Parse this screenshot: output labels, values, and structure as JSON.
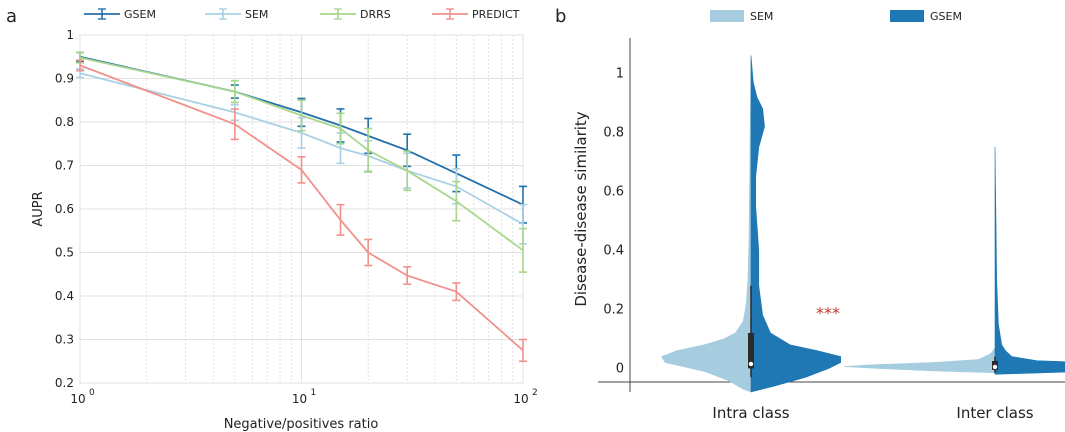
{
  "panels": {
    "a": {
      "label": "a"
    },
    "b": {
      "label": "b"
    }
  },
  "chart_data": [
    {
      "type": "line",
      "panel": "a",
      "title": "",
      "xlabel": "Negative/positives ratio",
      "ylabel": "AUPR",
      "xscale": "log",
      "xlim": [
        1,
        100
      ],
      "ylim": [
        0.2,
        1.0
      ],
      "xticks": [
        1,
        10,
        100
      ],
      "xtick_labels": [
        {
          "base": "10",
          "exp": "0"
        },
        {
          "base": "10",
          "exp": "1"
        },
        {
          "base": "10",
          "exp": "2"
        }
      ],
      "yticks": [
        0.2,
        0.3,
        0.4,
        0.5,
        0.6,
        0.7,
        0.8,
        0.9,
        1
      ],
      "ytick_labels": [
        "0.2",
        "0.3",
        "0.4",
        "0.5",
        "0.6",
        "0.7",
        "0.8",
        "0.9",
        "1"
      ],
      "grid": true,
      "legend_position": "top",
      "x": [
        1,
        5,
        10,
        15,
        20,
        30,
        50,
        100
      ],
      "series": [
        {
          "name": "GSEM",
          "color": "#2470ab",
          "values": [
            0.95,
            0.87,
            0.822,
            0.792,
            0.768,
            0.735,
            0.682,
            0.61
          ],
          "err": [
            0.01,
            0.015,
            0.032,
            0.038,
            0.04,
            0.037,
            0.042,
            0.042
          ],
          "err_x": [
            1,
            5,
            10,
            15,
            20,
            30,
            50,
            100
          ]
        },
        {
          "name": "SEM",
          "color": "#a9d0e4",
          "values": [
            0.912,
            0.822,
            0.775,
            0.74,
            0.722,
            0.688,
            0.652,
            0.565
          ],
          "err": [
            0.01,
            0.018,
            0.035,
            0.035,
            0.035,
            0.04,
            0.04,
            0.045
          ],
          "err_x": [
            1,
            5,
            10,
            15,
            20,
            30,
            50,
            100
          ]
        },
        {
          "name": "DRRS",
          "color": "#a7d68c",
          "values": [
            0.948,
            0.87,
            0.815,
            0.785,
            0.735,
            0.688,
            0.618,
            0.505
          ],
          "err": [
            0.012,
            0.025,
            0.035,
            0.035,
            0.05,
            0.045,
            0.045,
            0.05
          ],
          "err_x": [
            1,
            5,
            10,
            15,
            20,
            30,
            50,
            100
          ]
        },
        {
          "name": "PREDICT",
          "color": "#f0918c",
          "values": [
            0.93,
            0.795,
            0.69,
            0.575,
            0.5,
            0.447,
            0.41,
            0.275
          ],
          "err": [
            0.012,
            0.035,
            0.03,
            0.035,
            0.03,
            0.02,
            0.02,
            0.025
          ],
          "err_x": [
            1,
            5,
            10,
            15,
            20,
            30,
            50,
            100
          ]
        }
      ]
    },
    {
      "type": "violin",
      "panel": "b",
      "title": "",
      "xlabel": "",
      "ylabel": "Disease-disease similarity",
      "ylim": [
        -0.08,
        1.12
      ],
      "yticks": [
        0,
        0.2,
        0.4,
        0.6,
        0.8,
        1
      ],
      "ytick_labels": [
        "0",
        "0.2",
        "0.4",
        "0.6",
        "0.8",
        "1"
      ],
      "categories": [
        "Intra class",
        "Inter class"
      ],
      "legend_position": "top",
      "series": [
        {
          "name": "SEM",
          "color": "#a6cce0",
          "side": "left"
        },
        {
          "name": "GSEM",
          "color": "#1f78b4",
          "side": "right"
        }
      ],
      "annotation": {
        "text": "***",
        "color": "#c0392b",
        "category": "Intra class",
        "y": 0.17
      },
      "distributions": {
        "Intra class": {
          "SEM": [
            [
              -0.08,
              0
            ],
            [
              -0.07,
              0.02
            ],
            [
              -0.04,
              0.06
            ],
            [
              -0.01,
              0.12
            ],
            [
              0.005,
              0.17
            ],
            [
              0.02,
              0.22
            ],
            [
              0.04,
              0.23
            ],
            [
              0.06,
              0.19
            ],
            [
              0.08,
              0.12
            ],
            [
              0.1,
              0.07
            ],
            [
              0.12,
              0.04
            ],
            [
              0.16,
              0.02
            ],
            [
              0.22,
              0.012
            ],
            [
              0.3,
              0.008
            ],
            [
              0.45,
              0.005
            ],
            [
              0.7,
              0.003
            ],
            [
              1.05,
              0
            ]
          ],
          "GSEM": [
            [
              -0.08,
              0
            ],
            [
              -0.06,
              0.06
            ],
            [
              -0.03,
              0.14
            ],
            [
              0.0,
              0.2
            ],
            [
              0.02,
              0.23
            ],
            [
              0.04,
              0.23
            ],
            [
              0.06,
              0.17
            ],
            [
              0.08,
              0.1
            ],
            [
              0.12,
              0.05
            ],
            [
              0.18,
              0.03
            ],
            [
              0.28,
              0.02
            ],
            [
              0.4,
              0.02
            ],
            [
              0.55,
              0.012
            ],
            [
              0.65,
              0.012
            ],
            [
              0.75,
              0.02
            ],
            [
              0.82,
              0.035
            ],
            [
              0.88,
              0.03
            ],
            [
              0.92,
              0.015
            ],
            [
              0.97,
              0.006
            ],
            [
              1.06,
              0
            ]
          ],
          "box": {
            "q1": 0.0,
            "median": 0.015,
            "q3": 0.12,
            "whisker_low": -0.03,
            "whisker_high": 0.28
          }
        },
        "Inter class": {
          "SEM": [
            [
              -0.015,
              0
            ],
            [
              -0.008,
              0.15
            ],
            [
              0.0,
              0.28
            ],
            [
              0.006,
              0.36
            ],
            [
              0.012,
              0.3
            ],
            [
              0.02,
              0.15
            ],
            [
              0.03,
              0.04
            ],
            [
              0.05,
              0.01
            ],
            [
              0.07,
              0
            ]
          ],
          "GSEM": [
            [
              -0.02,
              0
            ],
            [
              -0.01,
              0.22
            ],
            [
              0.0,
              0.42
            ],
            [
              0.008,
              0.45
            ],
            [
              0.016,
              0.3
            ],
            [
              0.026,
              0.1
            ],
            [
              0.04,
              0.04
            ],
            [
              0.06,
              0.025
            ],
            [
              0.08,
              0.016
            ],
            [
              0.15,
              0.008
            ],
            [
              0.3,
              0.004
            ],
            [
              0.55,
              0.002
            ],
            [
              0.75,
              0
            ]
          ],
          "box": {
            "q1": -0.005,
            "median": 0.005,
            "q3": 0.025,
            "whisker_low": -0.015,
            "whisker_high": 0.04
          }
        }
      }
    }
  ]
}
